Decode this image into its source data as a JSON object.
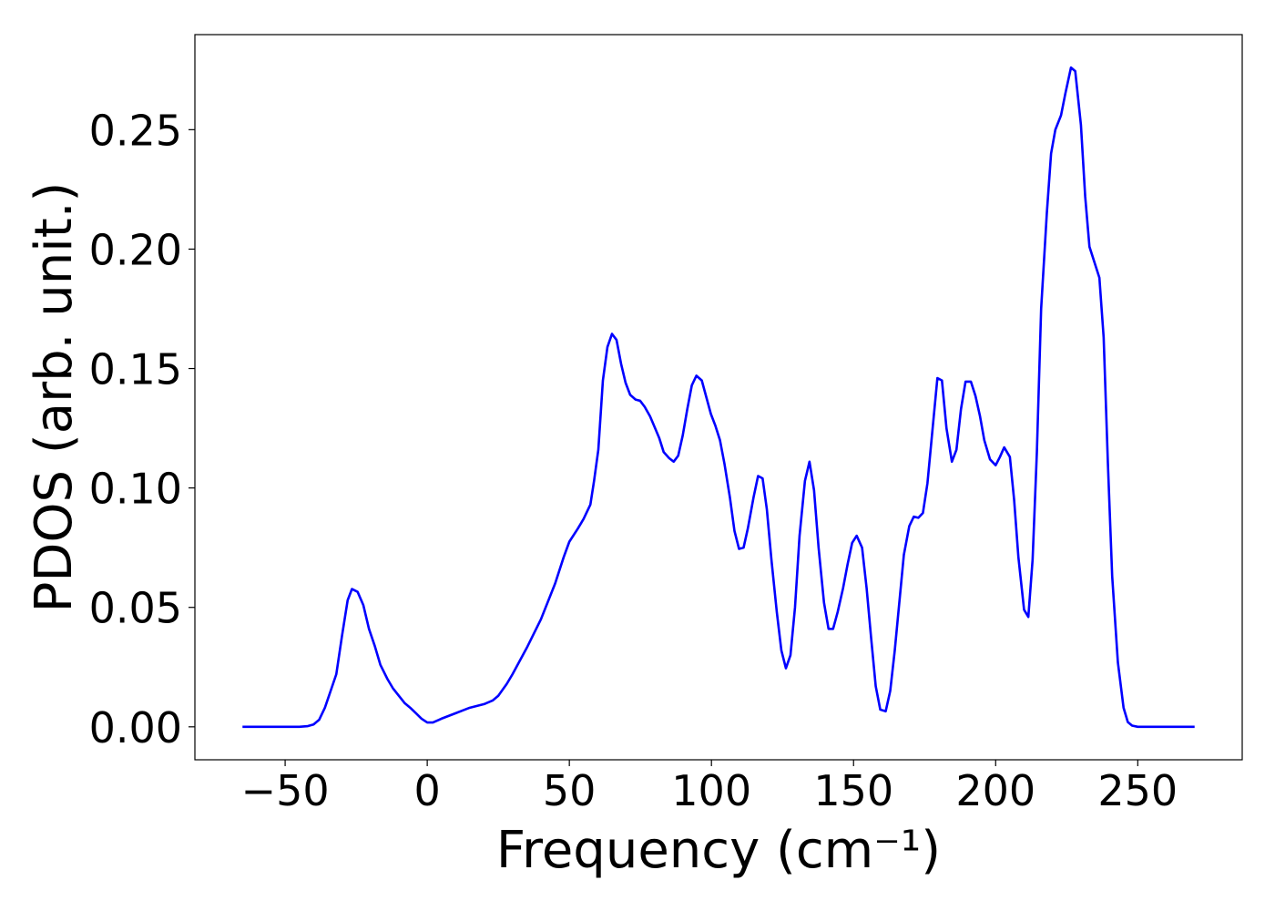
{
  "chart_data": {
    "type": "line",
    "xlabel": "Frequency (cm⁻¹)",
    "ylabel": "PDOS (arb. unit.)",
    "color": "#0000ff",
    "xlim": [
      -81.75,
      286.75
    ],
    "ylim": [
      -0.0138,
      0.2898
    ],
    "xticks": [
      {
        "value": -50,
        "label": "−50"
      },
      0,
      50,
      100,
      150,
      200,
      250
    ],
    "yticks": [
      {
        "value": 0,
        "label": "0.00"
      },
      {
        "value": 0.05,
        "label": "0.05"
      },
      {
        "value": 0.1,
        "label": "0.10"
      },
      {
        "value": 0.15,
        "label": "0.15"
      },
      {
        "value": 0.2,
        "label": "0.20"
      },
      {
        "value": 0.25,
        "label": "0.25"
      }
    ],
    "x": [
      -65,
      -55,
      -45,
      -42,
      -40,
      -38,
      -36,
      -34,
      -32,
      -30,
      -28,
      -26.5,
      -24.5,
      -22.5,
      -20.5,
      -18.5,
      -16.5,
      -14,
      -12,
      -10,
      -8,
      -6,
      -4,
      -2,
      0,
      2,
      5,
      10,
      15,
      20,
      23,
      25,
      28,
      30,
      35,
      40,
      45,
      48,
      50,
      53,
      55,
      57.4,
      58.7,
      60.2,
      61.8,
      63.4,
      65,
      66.6,
      68.2,
      69.8,
      71.4,
      73.3,
      74.9,
      76.5,
      78.4,
      80,
      81.6,
      83.2,
      85.1,
      86.7,
      88.3,
      89.9,
      91.5,
      93.1,
      94.7,
      96.6,
      98.2,
      99.8,
      101.4,
      103,
      104.6,
      106.5,
      108.1,
      109.7,
      111.3,
      112.8,
      114.8,
      116.4,
      118,
      119.5,
      121.1,
      123,
      124.6,
      126.2,
      127.8,
      129.4,
      131,
      132.9,
      134.5,
      136.1,
      137.7,
      139.6,
      141.2,
      142.8,
      144.4,
      146.3,
      147.9,
      149.5,
      151.1,
      153,
      154.6,
      156.2,
      157.8,
      159.4,
      161.3,
      162.9,
      164.5,
      166.1,
      167.7,
      169.6,
      171.2,
      172.8,
      174.4,
      176,
      177.9,
      179.5,
      181.1,
      182.7,
      184.6,
      186.2,
      187.8,
      189.4,
      191.3,
      192.9,
      194.5,
      196,
      198,
      200,
      201.5,
      203,
      205,
      206.5,
      208,
      210,
      211.5,
      213,
      214.5,
      216,
      218,
      219.5,
      221,
      223,
      224.5,
      226.5,
      228,
      230,
      231.5,
      233,
      236.5,
      238,
      239.5,
      241,
      243,
      245,
      246.5,
      248,
      250,
      260,
      270
    ],
    "values": [
      0,
      0,
      0,
      0.0003,
      0.001,
      0.003,
      0.008,
      0.015,
      0.022,
      0.038,
      0.053,
      0.0577,
      0.0565,
      0.051,
      0.041,
      0.034,
      0.026,
      0.02,
      0.016,
      0.013,
      0.01,
      0.008,
      0.0057,
      0.0034,
      0.0018,
      0.0018,
      0.0034,
      0.0057,
      0.008,
      0.0095,
      0.011,
      0.013,
      0.018,
      0.022,
      0.033,
      0.045,
      0.06,
      0.071,
      0.0775,
      0.083,
      0.087,
      0.093,
      0.103,
      0.116,
      0.145,
      0.159,
      0.1645,
      0.162,
      0.152,
      0.144,
      0.139,
      0.137,
      0.1365,
      0.134,
      0.13,
      0.1255,
      0.121,
      0.115,
      0.1125,
      0.111,
      0.1135,
      0.122,
      0.133,
      0.143,
      0.147,
      0.145,
      0.138,
      0.131,
      0.126,
      0.12,
      0.11,
      0.096,
      0.082,
      0.0745,
      0.075,
      0.083,
      0.096,
      0.105,
      0.104,
      0.091,
      0.07,
      0.048,
      0.032,
      0.0245,
      0.03,
      0.05,
      0.08,
      0.103,
      0.111,
      0.099,
      0.075,
      0.052,
      0.041,
      0.041,
      0.048,
      0.058,
      0.068,
      0.077,
      0.08,
      0.075,
      0.058,
      0.037,
      0.017,
      0.0072,
      0.0065,
      0.015,
      0.032,
      0.052,
      0.072,
      0.084,
      0.088,
      0.0875,
      0.0895,
      0.102,
      0.126,
      0.146,
      0.145,
      0.125,
      0.111,
      0.116,
      0.133,
      0.1445,
      0.1445,
      0.1385,
      0.13,
      0.12,
      0.112,
      0.1095,
      0.113,
      0.117,
      0.113,
      0.095,
      0.071,
      0.049,
      0.046,
      0.07,
      0.115,
      0.175,
      0.215,
      0.24,
      0.25,
      0.256,
      0.265,
      0.276,
      0.2745,
      0.252,
      0.222,
      0.201,
      0.188,
      0.163,
      0.11,
      0.063,
      0.027,
      0.008,
      0.002,
      0.0005,
      0,
      0,
      0
    ]
  }
}
